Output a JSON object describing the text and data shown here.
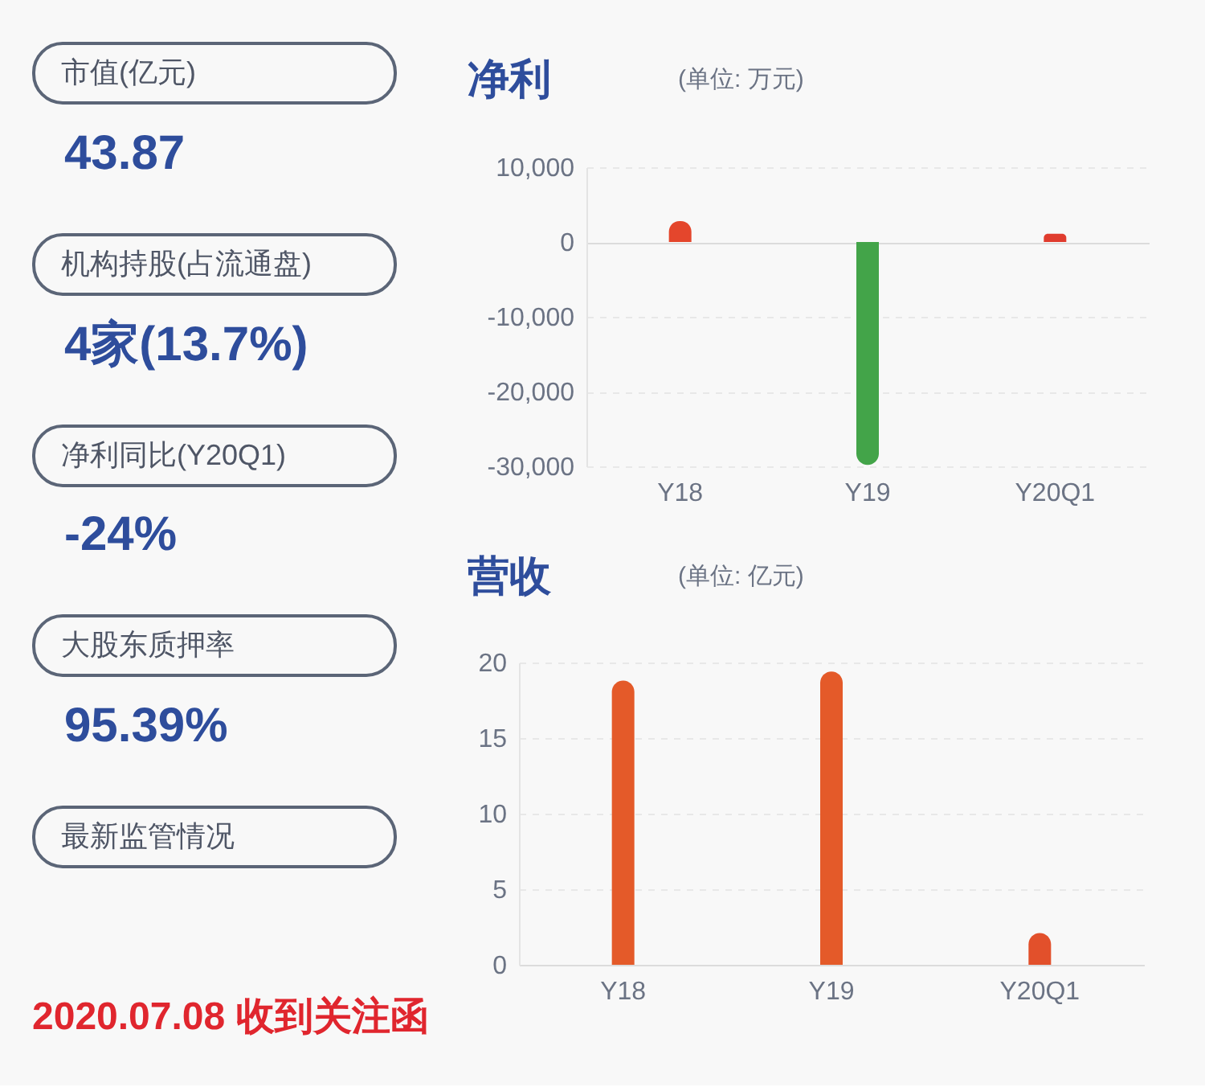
{
  "chart_data": [
    {
      "type": "other",
      "annotations": [
        "市值(亿元)",
        "43.87",
        "机构持股(占流通盘)",
        "4家(13.7%)",
        "净利同比(Y20Q1)",
        "-24%",
        "大股东质押率",
        "95.39%",
        "最新监管情况",
        "2020.07.08 收到关注函"
      ]
    },
    {
      "type": "bar",
      "title": "净利",
      "subtitle": "(单位: 万元)",
      "categories": [
        "Y18",
        "Y19",
        "Y20Q1"
      ],
      "values": [
        2800,
        -29800,
        1100
      ],
      "colors": [
        "#e4462c",
        "#43a449",
        "#e03c2e"
      ],
      "ylim": [
        -30000,
        10000
      ],
      "yticks": [
        {
          "value": 10000,
          "label": "10,000"
        },
        0,
        {
          "value": -10000,
          "label": "-10,000"
        },
        {
          "value": -20000,
          "label": "-20,000"
        },
        {
          "value": -30000,
          "label": "-30,000"
        }
      ],
      "grid": "y"
    },
    {
      "type": "bar",
      "title": "营收",
      "subtitle": "(单位: 亿元)",
      "categories": [
        "Y18",
        "Y19",
        "Y20Q1"
      ],
      "values": [
        18.8,
        19.4,
        2.1
      ],
      "colors": [
        "#e45a29",
        "#e45a29",
        "#e2502b"
      ],
      "ylim": [
        0,
        20
      ],
      "yticks": [
        0,
        5,
        10,
        15,
        20
      ],
      "grid": "y"
    }
  ]
}
